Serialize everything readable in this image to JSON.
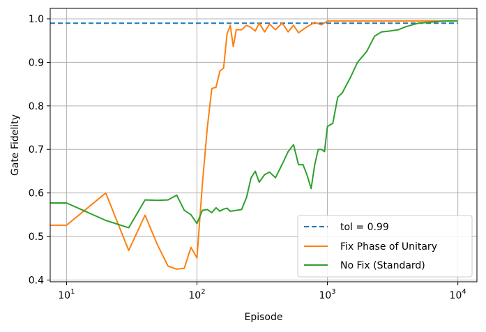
{
  "chart_data": {
    "type": "line",
    "xlabel": "Episode",
    "ylabel": "Gate Fidelity",
    "xscale": "log",
    "xlim": [
      7.5,
      14000
    ],
    "ylim": [
      0.396,
      1.024
    ],
    "xticks": [
      {
        "value": 10,
        "base": "10",
        "exp": "1"
      },
      {
        "value": 100,
        "base": "10",
        "exp": "2"
      },
      {
        "value": 1000,
        "base": "10",
        "exp": "3"
      },
      {
        "value": 10000,
        "base": "10",
        "exp": "4"
      }
    ],
    "yticks": [
      {
        "value": 0.4,
        "label": "0.4"
      },
      {
        "value": 0.5,
        "label": "0.5"
      },
      {
        "value": 0.6,
        "label": "0.6"
      },
      {
        "value": 0.7,
        "label": "0.7"
      },
      {
        "value": 0.8,
        "label": "0.8"
      },
      {
        "value": 0.9,
        "label": "0.9"
      },
      {
        "value": 1.0,
        "label": "1.0"
      }
    ],
    "grid": true,
    "legend_position": "bottom-right",
    "series": [
      {
        "name": "tol = 0.99",
        "color": "#1f77b4",
        "style": "dashed",
        "x": [
          7.5,
          10000
        ],
        "y": [
          0.99,
          0.99
        ]
      },
      {
        "name": "Fix Phase of Unitary",
        "color": "#ff7f0e",
        "style": "solid",
        "x": [
          7.5,
          10,
          20,
          30,
          40,
          50,
          60,
          70,
          80,
          90,
          100,
          110,
          120,
          130,
          140,
          150,
          160,
          170,
          180,
          190,
          200,
          220,
          240,
          260,
          280,
          300,
          330,
          360,
          400,
          450,
          500,
          550,
          600,
          700,
          800,
          900,
          1000,
          1500,
          2000,
          3000,
          5000,
          10000
        ],
        "y": [
          0.526,
          0.526,
          0.6,
          0.468,
          0.549,
          0.48,
          0.432,
          0.425,
          0.427,
          0.475,
          0.451,
          0.62,
          0.75,
          0.84,
          0.843,
          0.88,
          0.887,
          0.965,
          0.985,
          0.936,
          0.975,
          0.975,
          0.985,
          0.98,
          0.972,
          0.99,
          0.97,
          0.988,
          0.975,
          0.99,
          0.97,
          0.985,
          0.968,
          0.982,
          0.992,
          0.986,
          0.995,
          0.995,
          0.995,
          0.995,
          0.995,
          0.995
        ]
      },
      {
        "name": "No Fix (Standard)",
        "color": "#2ca02c",
        "style": "solid",
        "x": [
          7.5,
          10,
          20,
          30,
          40,
          50,
          60,
          70,
          80,
          90,
          100,
          110,
          120,
          130,
          140,
          150,
          160,
          170,
          180,
          200,
          220,
          240,
          260,
          280,
          300,
          330,
          360,
          400,
          450,
          500,
          550,
          600,
          650,
          700,
          750,
          800,
          850,
          900,
          950,
          1000,
          1100,
          1200,
          1300,
          1500,
          1700,
          2000,
          2300,
          2600,
          3000,
          3500,
          4000,
          5000,
          6000,
          8000,
          10000
        ],
        "y": [
          0.577,
          0.577,
          0.537,
          0.52,
          0.584,
          0.583,
          0.584,
          0.595,
          0.56,
          0.55,
          0.53,
          0.56,
          0.562,
          0.555,
          0.566,
          0.558,
          0.563,
          0.565,
          0.558,
          0.56,
          0.562,
          0.59,
          0.635,
          0.65,
          0.625,
          0.642,
          0.648,
          0.635,
          0.666,
          0.695,
          0.711,
          0.665,
          0.665,
          0.64,
          0.61,
          0.665,
          0.7,
          0.7,
          0.695,
          0.753,
          0.76,
          0.82,
          0.83,
          0.865,
          0.9,
          0.925,
          0.96,
          0.97,
          0.972,
          0.975,
          0.982,
          0.99,
          0.992,
          0.995,
          0.995
        ]
      }
    ]
  }
}
